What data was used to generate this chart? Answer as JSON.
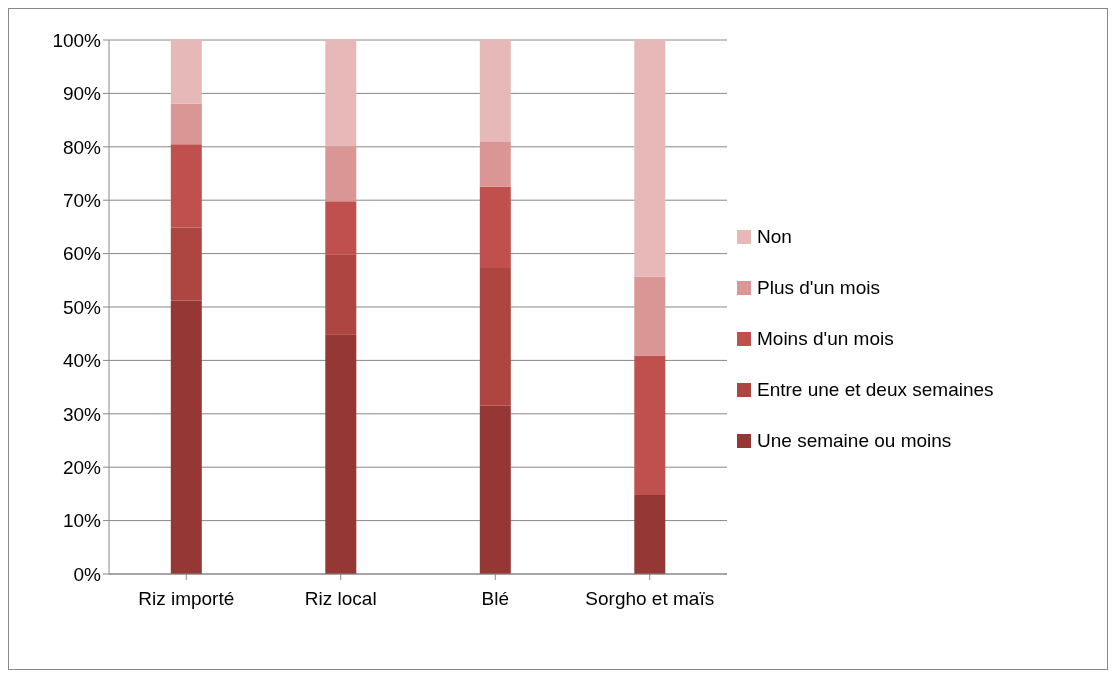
{
  "chart_data": {
    "type": "bar",
    "stacked": true,
    "categories": [
      "Riz importé",
      "Riz local",
      "Blé",
      "Sorgho et maïs"
    ],
    "series": [
      {
        "name": "Une semaine ou moins",
        "color": "#953735",
        "values": [
          51.2,
          44.9,
          31.5,
          14.8
        ]
      },
      {
        "name": "Entre une et deux semaines",
        "color": "#ad4541",
        "values": [
          13.7,
          15.0,
          25.8,
          0
        ]
      },
      {
        "name": "Moins d'un mois",
        "color": "#c0504d",
        "values": [
          15.6,
          9.9,
          15.2,
          26.1
        ]
      },
      {
        "name": "Plus d'un mois",
        "color": "#d99694",
        "values": [
          7.6,
          10.3,
          8.4,
          14.8
        ]
      },
      {
        "name": "Non",
        "color": "#e6b9b8",
        "values": [
          11.9,
          19.9,
          19.1,
          44.3
        ]
      }
    ],
    "ylim": [
      0,
      100
    ],
    "yticks": [
      {
        "value": 0,
        "label": "0%"
      },
      {
        "value": 10,
        "label": "10%"
      },
      {
        "value": 20,
        "label": "20%"
      },
      {
        "value": 30,
        "label": "30%"
      },
      {
        "value": 40,
        "label": "40%"
      },
      {
        "value": 50,
        "label": "50%"
      },
      {
        "value": 60,
        "label": "60%"
      },
      {
        "value": 70,
        "label": "70%"
      },
      {
        "value": 80,
        "label": "80%"
      },
      {
        "value": 90,
        "label": "90%"
      },
      {
        "value": 100,
        "label": "100%"
      }
    ],
    "grid": "y",
    "legend": "right"
  }
}
